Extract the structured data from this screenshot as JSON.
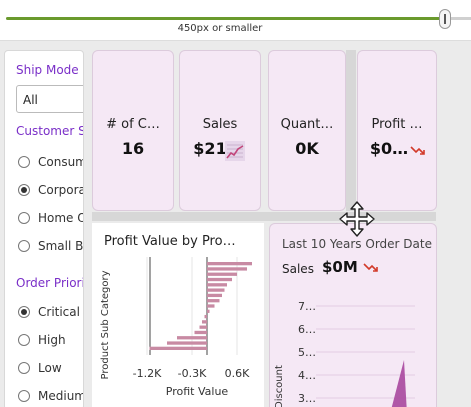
{
  "width_slider": {
    "caption": "450px or smaller",
    "track_color": "#6a9a2d"
  },
  "filters": {
    "ship_mode": {
      "title": "Ship Mode",
      "selected": "All"
    },
    "customer_segment": {
      "title": "Customer Se",
      "options": [
        {
          "label": "Consum",
          "selected": false
        },
        {
          "label": "Corporat",
          "selected": true
        },
        {
          "label": "Home O",
          "selected": false
        },
        {
          "label": "Small Bu",
          "selected": false
        }
      ]
    },
    "order_priority": {
      "title": "Order Priori",
      "options": [
        {
          "label": "Critical",
          "selected": true
        },
        {
          "label": "High",
          "selected": false
        },
        {
          "label": "Low",
          "selected": false
        },
        {
          "label": "Medium",
          "selected": false
        }
      ]
    }
  },
  "kpis": [
    {
      "label": "# of C…",
      "value": "16",
      "icon": ""
    },
    {
      "label": "Sales",
      "value": "$21",
      "icon": "trend-chart-icon"
    },
    {
      "label": "Quant…",
      "value": "0K",
      "icon": ""
    },
    {
      "label": "Profit …",
      "value": "$0…",
      "icon": "down-trend-arrow-icon"
    }
  ],
  "profit_chart": {
    "title": "Profit Value by Pro…",
    "xlabel": "Profit Value",
    "ylabel": "Product Sub Category",
    "x_ticks": [
      "-1.2K",
      "-0.3K",
      "0.6K"
    ],
    "bar_color": "#c88aa3"
  },
  "discount_chart": {
    "title": "Last 10 Years Order Date",
    "sales_label": "Sales",
    "sales_value": "$0M",
    "trend_icon": "down-trend-arrow-icon",
    "ylabel": "Discount",
    "y_ticks": [
      "7…",
      "6…",
      "5…",
      "4…",
      "3…"
    ],
    "area_color": "#a8479f"
  },
  "accent_color": "#7a2fc8",
  "card_color": "#f5e8f5",
  "chart_data": {
    "type": "bar",
    "title": "Profit Value by Pro…",
    "xlabel": "Profit Value",
    "ylabel": "Product Sub Category",
    "orientation": "horizontal",
    "x_ticks": [
      "-1.2K",
      "-0.3K",
      "0.6K"
    ],
    "xlim": [
      -1.5,
      0.9
    ],
    "values": [
      0.9,
      0.8,
      0.6,
      0.5,
      0.4,
      0.35,
      0.3,
      0.25,
      0.15,
      0.05,
      -0.05,
      -0.1,
      -0.15,
      -0.25,
      -0.6,
      -0.8,
      -1.15
    ],
    "value_units": "K"
  }
}
